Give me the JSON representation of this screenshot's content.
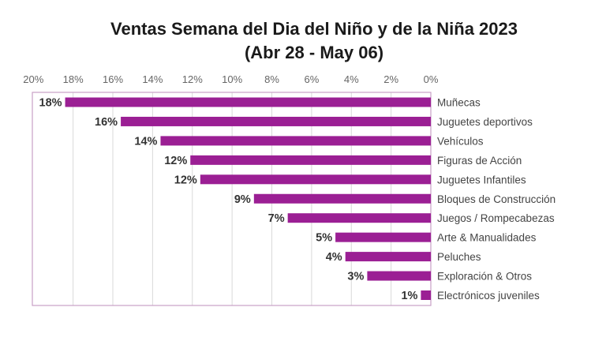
{
  "chart_data": {
    "type": "bar",
    "orientation": "horizontal",
    "title": "Ventas Semana del Dia del Niño y de la Niña 2023",
    "subtitle": "(Abr 28 - May 06)",
    "categories": [
      "Muñecas",
      "Juguetes deportivos",
      "Vehículos",
      "Figuras de Acción",
      "Juguetes Infantiles",
      "Bloques de Construcción",
      "Juegos / Rompecabezas",
      "Arte & Manualidades",
      "Peluches",
      "Exploración & Otros",
      "Electrónicos juveniles"
    ],
    "values": [
      18.4,
      15.6,
      13.6,
      12.1,
      11.6,
      8.9,
      7.2,
      4.8,
      4.3,
      3.2,
      0.5
    ],
    "data_labels": [
      "18%",
      "16%",
      "14%",
      "12%",
      "12%",
      "9%",
      "7%",
      "5%",
      "4%",
      "3%",
      "1%"
    ],
    "xticks": [
      "20%",
      "18%",
      "16%",
      "14%",
      "12%",
      "10%",
      "8%",
      "6%",
      "4%",
      "2%",
      "0%"
    ],
    "xlim": [
      0,
      20
    ],
    "x_axis_reversed": true,
    "x_axis_position": "top",
    "category_labels_position": "right",
    "grid": true,
    "bar_color": "#9b1f94",
    "frame_color": "#c9a0c6",
    "grid_color": "#d9d9d9",
    "xlabel": "",
    "ylabel": ""
  }
}
